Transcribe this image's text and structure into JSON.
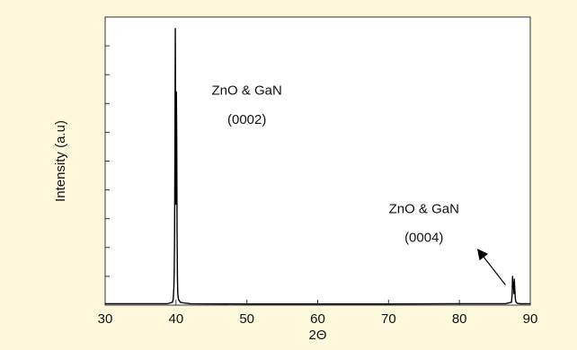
{
  "chart_data": {
    "type": "line",
    "title": "",
    "xlabel": "2Θ",
    "ylabel": "Intensity (a.u)",
    "xlim": [
      30,
      90
    ],
    "ylim": [
      0,
      100
    ],
    "x_ticks": [
      30,
      40,
      50,
      60,
      70,
      80,
      90
    ],
    "x_tick_labels": [
      "30",
      "40",
      "50",
      "60",
      "70",
      "80",
      "90"
    ],
    "y_minor_tick_values": [
      10,
      20,
      30,
      40,
      50,
      60,
      70,
      80,
      90
    ],
    "grid": false,
    "series": [
      {
        "x": [
          30,
          38.8,
          39.5,
          39.6,
          39.7,
          39.75,
          39.8,
          39.85,
          39.9,
          39.95,
          40.0,
          40.05,
          40.1,
          40.15,
          40.2,
          40.25,
          40.35,
          40.6,
          41.0,
          42.0,
          50,
          60,
          70,
          80,
          86.5,
          87.35,
          87.45,
          87.5,
          87.55,
          87.6,
          87.7,
          87.75,
          87.8,
          87.9,
          88.0,
          88.2,
          88.6,
          90
        ],
        "y": [
          0.5,
          0.5,
          1,
          2,
          6,
          12,
          25,
          55,
          96,
          60,
          35,
          74,
          58,
          25,
          10,
          4,
          2,
          1,
          0.8,
          0.5,
          0.4,
          0.4,
          0.4,
          0.5,
          0.5,
          1,
          4,
          10,
          7,
          8,
          4,
          9,
          6,
          2,
          1,
          0.6,
          0.5,
          0.5
        ]
      }
    ],
    "annotations": [
      {
        "text": "ZnO & GaN",
        "x": 50,
        "y": 73
      },
      {
        "text": "(0002)",
        "x": 50,
        "y": 63
      },
      {
        "text": "ZnO & GaN",
        "x": 75,
        "y": 32
      },
      {
        "text": "(0004)",
        "x": 75,
        "y": 22
      }
    ],
    "arrow": {
      "from": [
        86.5,
        7
      ],
      "to": [
        82.7,
        19
      ]
    }
  }
}
